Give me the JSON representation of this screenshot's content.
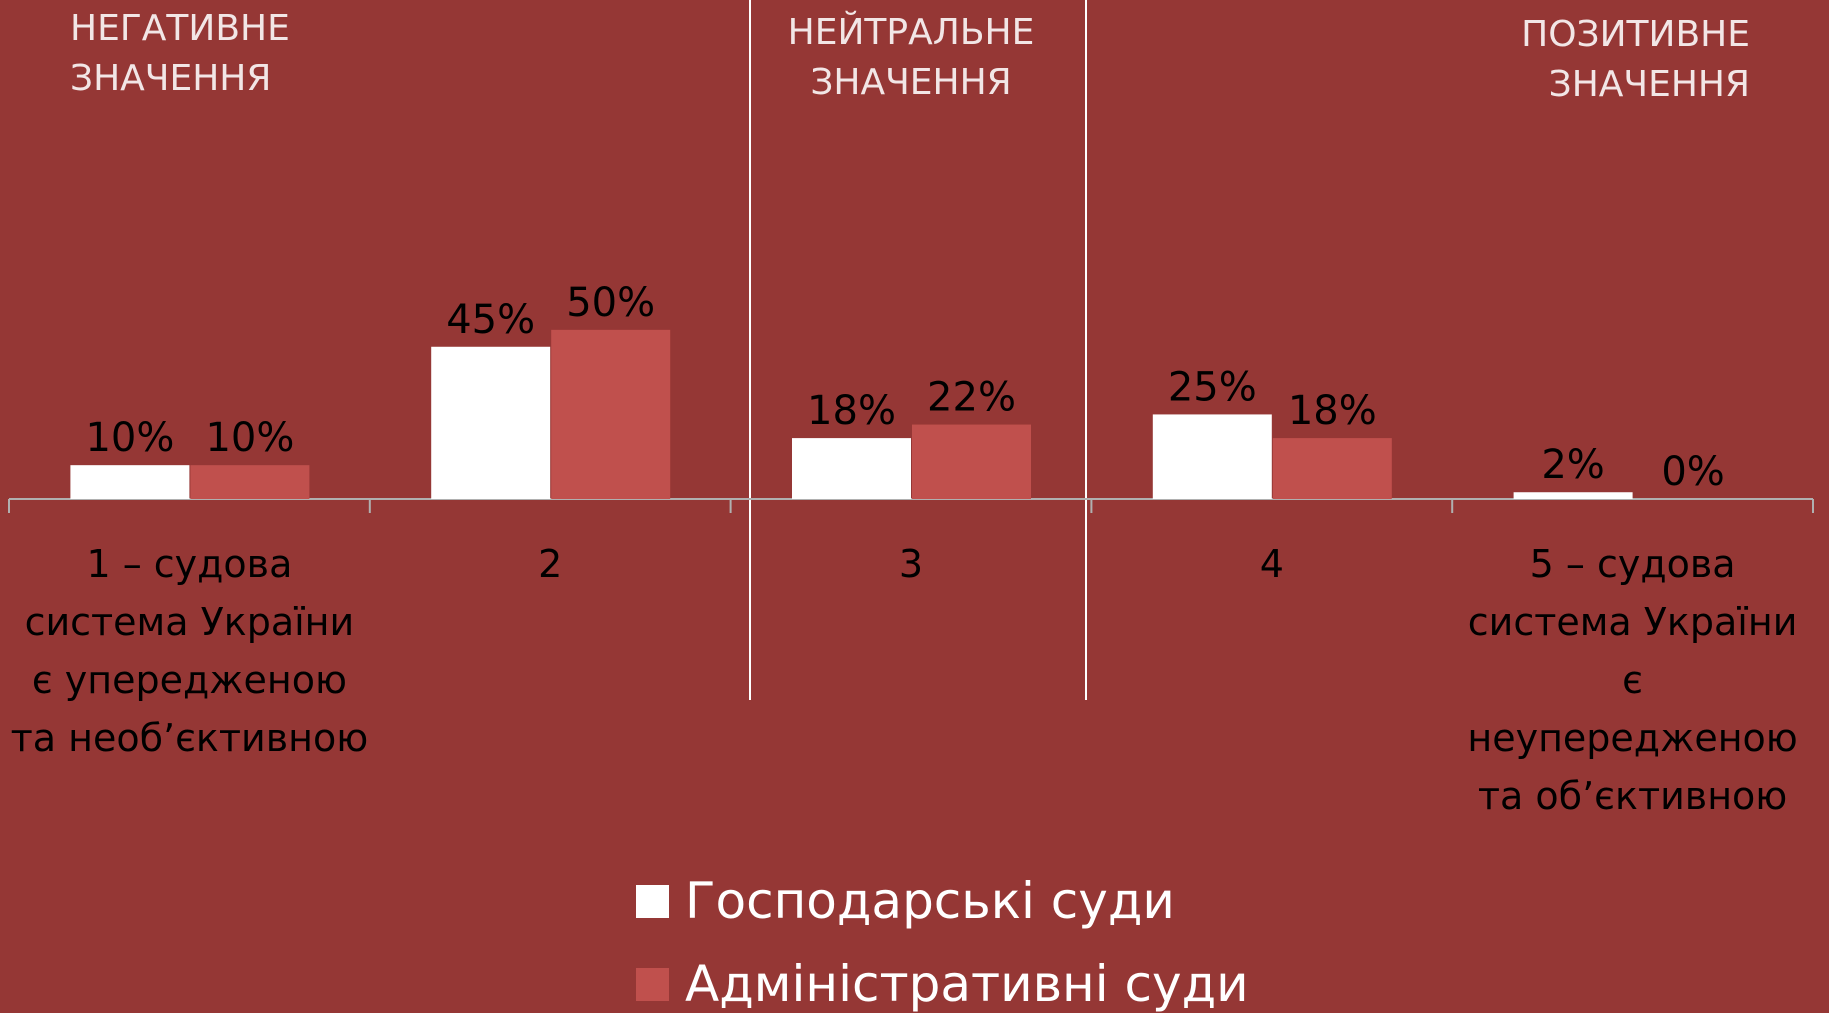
{
  "chart_data": {
    "type": "bar",
    "annotations": [
      "НЕГАТИВНЕ ЗНАЧЕННЯ",
      "НЕЙТРАЛЬНЕ ЗНАЧЕННЯ",
      "ПОЗИТИВНЕ ЗНАЧЕННЯ"
    ],
    "categories": [
      "1 – судова система України є упередженою та необ’єктивною",
      "2",
      "3",
      "4",
      "5 – судова система України є неупередженою та об’єктивною"
    ],
    "series": [
      {
        "name": "Господарські суди",
        "color": "#ffffff",
        "values": [
          10,
          45,
          18,
          25,
          2
        ],
        "value_labels": [
          "10%",
          "45%",
          "18%",
          "25%",
          "2%"
        ]
      },
      {
        "name": "Адміністративні суди",
        "color": "#c0504d",
        "values": [
          10,
          50,
          22,
          18,
          0
        ],
        "value_labels": [
          "10%",
          "50%",
          "22%",
          "18%",
          "0%"
        ]
      }
    ]
  }
}
